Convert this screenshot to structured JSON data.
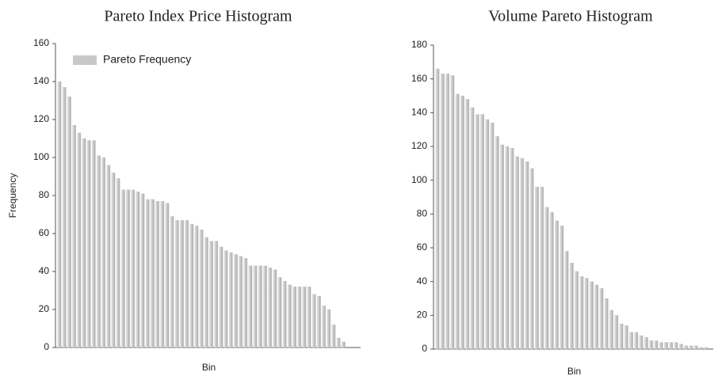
{
  "chart_data": [
    {
      "type": "bar",
      "title": "Pareto Index Price Histogram",
      "x_label": "Bin",
      "y_label": "Frequency",
      "categories": [
        null,
        null,
        null,
        null,
        null,
        null,
        null,
        null,
        null,
        null,
        null,
        null,
        null,
        null,
        null,
        null,
        null,
        null,
        null,
        null,
        null,
        null,
        null,
        null,
        null,
        null,
        null,
        null,
        null,
        null,
        null,
        null,
        null,
        null,
        null,
        null,
        null,
        null,
        null,
        null,
        null,
        null,
        null,
        null,
        null,
        null,
        null,
        null,
        null,
        null,
        null,
        null,
        null,
        null,
        null,
        null,
        null,
        null,
        null,
        null,
        null,
        null
      ],
      "series": [
        {
          "name": "Pareto Frequency",
          "color": "#c8c8c8",
          "values": [
            140,
            137,
            132,
            117,
            113,
            110,
            109,
            109,
            101,
            100,
            96,
            92,
            89,
            83,
            83,
            83,
            82,
            81,
            78,
            78,
            77,
            77,
            76,
            69,
            67,
            67,
            67,
            65,
            64,
            62,
            58,
            56,
            56,
            53,
            51,
            50,
            49,
            48,
            47,
            43,
            43,
            43,
            43,
            42,
            41,
            37,
            35,
            33,
            32,
            32,
            32,
            32,
            28,
            27,
            22,
            20,
            12,
            5,
            3,
            0,
            0,
            0
          ]
        }
      ],
      "ylim": [
        0,
        160
      ],
      "yticks": [
        0,
        20,
        40,
        60,
        80,
        100,
        120,
        140,
        160
      ],
      "legend": "top-left"
    },
    {
      "type": "bar",
      "title": "Volume Pareto Histogram",
      "x_label": "Bin",
      "categories": [
        null,
        null,
        null,
        null,
        null,
        null,
        null,
        null,
        null,
        null,
        null,
        null,
        null,
        null,
        null,
        null,
        null,
        null,
        null,
        null,
        null,
        null,
        null,
        null,
        null,
        null,
        null,
        null,
        null,
        null,
        null,
        null,
        null,
        null,
        null,
        null,
        null,
        null,
        null,
        null,
        null,
        null,
        null,
        null,
        null,
        null,
        null,
        null,
        null,
        null,
        null,
        null,
        null,
        null,
        null,
        null
      ],
      "series": [
        {
          "color": "#c8c8c8",
          "values": [
            166,
            163,
            163,
            162,
            151,
            150,
            148,
            143,
            139,
            139,
            136,
            134,
            126,
            121,
            120,
            119,
            114,
            113,
            111,
            107,
            96,
            96,
            84,
            81,
            76,
            73,
            58,
            51,
            46,
            43,
            42,
            40,
            38,
            36,
            30,
            23,
            20,
            15,
            14,
            10,
            10,
            8,
            7,
            5,
            5,
            4,
            4,
            4,
            4,
            3,
            2,
            2,
            2,
            1,
            1,
            0
          ]
        }
      ],
      "ylim": [
        0,
        180
      ],
      "yticks": [
        0,
        20,
        40,
        60,
        80,
        100,
        120,
        140,
        160,
        180
      ]
    }
  ]
}
